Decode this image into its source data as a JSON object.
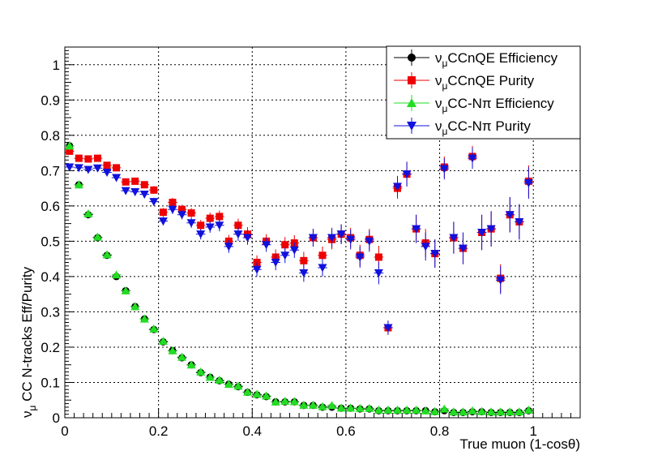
{
  "chart_data": {
    "type": "scatter",
    "xlabel": "True muon (1-cosθ)",
    "ylabel_parts": {
      "nu": "ν",
      "sub": "μ",
      "rest": " CC N-tracks Eff/Purity"
    },
    "xlim": [
      0,
      1.1
    ],
    "ylim": [
      0,
      1.05
    ],
    "x_ticks": [
      0,
      0.2,
      0.4,
      0.6,
      0.8,
      1
    ],
    "x_tick_labels": [
      "0",
      "0.2",
      "0.4",
      "0.6",
      "0.8",
      "1"
    ],
    "y_ticks": [
      0,
      0.1,
      0.2,
      0.3,
      0.4,
      0.5,
      0.6,
      0.7,
      0.8,
      0.9,
      1
    ],
    "y_tick_labels": [
      "0",
      "0.1",
      "0.2",
      "0.3",
      "0.4",
      "0.5",
      "0.6",
      "0.7",
      "0.8",
      "0.9",
      "1"
    ],
    "grid": true,
    "legend_position": "top-right",
    "x": [
      0.01,
      0.03,
      0.05,
      0.07,
      0.09,
      0.11,
      0.13,
      0.15,
      0.17,
      0.19,
      0.21,
      0.23,
      0.25,
      0.27,
      0.29,
      0.31,
      0.33,
      0.35,
      0.37,
      0.39,
      0.41,
      0.43,
      0.45,
      0.47,
      0.49,
      0.51,
      0.53,
      0.55,
      0.57,
      0.59,
      0.61,
      0.63,
      0.65,
      0.67,
      0.69,
      0.71,
      0.73,
      0.75,
      0.77,
      0.79,
      0.81,
      0.83,
      0.85,
      0.87,
      0.89,
      0.91,
      0.93,
      0.95,
      0.97,
      0.99
    ],
    "series": [
      {
        "legend_nu": "ν",
        "legend_sub": "μ",
        "legend_rest": "CCnQE Efficiency",
        "color": "#000000",
        "marker": "circle",
        "values": [
          0.77,
          0.66,
          0.575,
          0.51,
          0.46,
          0.4,
          0.36,
          0.315,
          0.28,
          0.25,
          0.215,
          0.19,
          0.17,
          0.15,
          0.128,
          0.115,
          0.105,
          0.095,
          0.088,
          0.072,
          0.065,
          0.06,
          0.045,
          0.045,
          0.045,
          0.035,
          0.035,
          0.03,
          0.03,
          0.027,
          0.027,
          0.025,
          0.025,
          0.02,
          0.02,
          0.02,
          0.02,
          0.02,
          0.02,
          0.017,
          0.02,
          0.015,
          0.015,
          0.017,
          0.017,
          0.015,
          0.015,
          0.015,
          0.015,
          0.02
        ],
        "errors": [
          0.012,
          0.008,
          0.007,
          0.006,
          0.006,
          0.006,
          0.006,
          0.005,
          0.005,
          0.005,
          0.005,
          0.005,
          0.004,
          0.004,
          0.004,
          0.004,
          0.004,
          0.004,
          0.004,
          0.004,
          0.004,
          0.003,
          0.003,
          0.003,
          0.003,
          0.003,
          0.003,
          0.003,
          0.003,
          0.003,
          0.003,
          0.003,
          0.003,
          0.003,
          0.003,
          0.003,
          0.003,
          0.003,
          0.003,
          0.003,
          0.003,
          0.003,
          0.003,
          0.003,
          0.003,
          0.003,
          0.003,
          0.003,
          0.003,
          0.003
        ]
      },
      {
        "legend_nu": "ν",
        "legend_sub": "μ",
        "legend_rest": "CCnQE Purity",
        "color": "#ee0000",
        "marker": "square",
        "values": [
          0.755,
          0.735,
          0.733,
          0.735,
          0.715,
          0.708,
          0.668,
          0.67,
          0.66,
          0.645,
          0.582,
          0.61,
          0.59,
          0.58,
          0.545,
          0.565,
          0.57,
          0.5,
          0.545,
          0.52,
          0.44,
          0.5,
          0.455,
          0.49,
          0.495,
          0.445,
          0.51,
          0.46,
          0.505,
          0.52,
          0.51,
          0.46,
          0.505,
          0.455,
          0.255,
          0.65,
          0.69,
          0.535,
          0.495,
          0.465,
          0.71,
          0.51,
          0.48,
          0.74,
          0.525,
          0.535,
          0.395,
          0.575,
          0.555,
          0.67
        ],
        "errors": [
          0.008,
          0.007,
          0.007,
          0.007,
          0.008,
          0.008,
          0.009,
          0.009,
          0.01,
          0.011,
          0.012,
          0.013,
          0.013,
          0.014,
          0.015,
          0.016,
          0.017,
          0.018,
          0.019,
          0.02,
          0.02,
          0.02,
          0.022,
          0.022,
          0.022,
          0.025,
          0.025,
          0.025,
          0.028,
          0.028,
          0.028,
          0.03,
          0.03,
          0.032,
          0.02,
          0.03,
          0.035,
          0.04,
          0.04,
          0.04,
          0.03,
          0.045,
          0.045,
          0.03,
          0.05,
          0.05,
          0.04,
          0.05,
          0.05,
          0.045
        ]
      },
      {
        "legend_nu": "ν",
        "legend_sub": "μ",
        "legend_rest": "CC-Nπ Efficiency",
        "color": "#22dd22",
        "marker": "triangle-up",
        "values": [
          0.77,
          0.66,
          0.578,
          0.512,
          0.462,
          0.405,
          0.36,
          0.315,
          0.28,
          0.252,
          0.217,
          0.19,
          0.172,
          0.15,
          0.13,
          0.115,
          0.107,
          0.095,
          0.09,
          0.073,
          0.067,
          0.062,
          0.045,
          0.047,
          0.046,
          0.036,
          0.036,
          0.032,
          0.035,
          0.028,
          0.028,
          0.027,
          0.027,
          0.022,
          0.022,
          0.022,
          0.022,
          0.022,
          0.02,
          0.018,
          0.025,
          0.017,
          0.017,
          0.02,
          0.018,
          0.017,
          0.017,
          0.017,
          0.017,
          0.022
        ],
        "errors": [
          0.012,
          0.008,
          0.007,
          0.006,
          0.006,
          0.006,
          0.006,
          0.005,
          0.005,
          0.005,
          0.005,
          0.005,
          0.004,
          0.004,
          0.004,
          0.004,
          0.004,
          0.004,
          0.004,
          0.004,
          0.004,
          0.003,
          0.003,
          0.003,
          0.003,
          0.003,
          0.003,
          0.003,
          0.003,
          0.003,
          0.003,
          0.003,
          0.003,
          0.003,
          0.003,
          0.003,
          0.003,
          0.003,
          0.003,
          0.003,
          0.003,
          0.003,
          0.003,
          0.003,
          0.003,
          0.003,
          0.003,
          0.003,
          0.003,
          0.003
        ]
      },
      {
        "legend_nu": "ν",
        "legend_sub": "μ",
        "legend_rest": "CC-Nπ Purity",
        "color": "#1111dd",
        "marker": "triangle-down",
        "values": [
          0.71,
          0.708,
          0.703,
          0.707,
          0.695,
          0.68,
          0.643,
          0.64,
          0.633,
          0.612,
          0.557,
          0.59,
          0.575,
          0.552,
          0.52,
          0.54,
          0.545,
          0.485,
          0.52,
          0.51,
          0.42,
          0.49,
          0.44,
          0.46,
          0.475,
          0.41,
          0.51,
          0.425,
          0.51,
          0.52,
          0.505,
          0.455,
          0.5,
          0.41,
          0.255,
          0.655,
          0.69,
          0.535,
          0.485,
          0.465,
          0.705,
          0.51,
          0.48,
          0.735,
          0.525,
          0.535,
          0.39,
          0.575,
          0.555,
          0.665
        ],
        "errors": [
          0.008,
          0.007,
          0.007,
          0.007,
          0.008,
          0.008,
          0.009,
          0.009,
          0.01,
          0.011,
          0.012,
          0.013,
          0.013,
          0.014,
          0.015,
          0.016,
          0.017,
          0.018,
          0.019,
          0.02,
          0.02,
          0.02,
          0.022,
          0.022,
          0.022,
          0.025,
          0.025,
          0.025,
          0.028,
          0.028,
          0.028,
          0.03,
          0.03,
          0.032,
          0.02,
          0.03,
          0.035,
          0.04,
          0.04,
          0.04,
          0.03,
          0.045,
          0.045,
          0.03,
          0.05,
          0.05,
          0.04,
          0.05,
          0.05,
          0.045
        ]
      }
    ]
  }
}
